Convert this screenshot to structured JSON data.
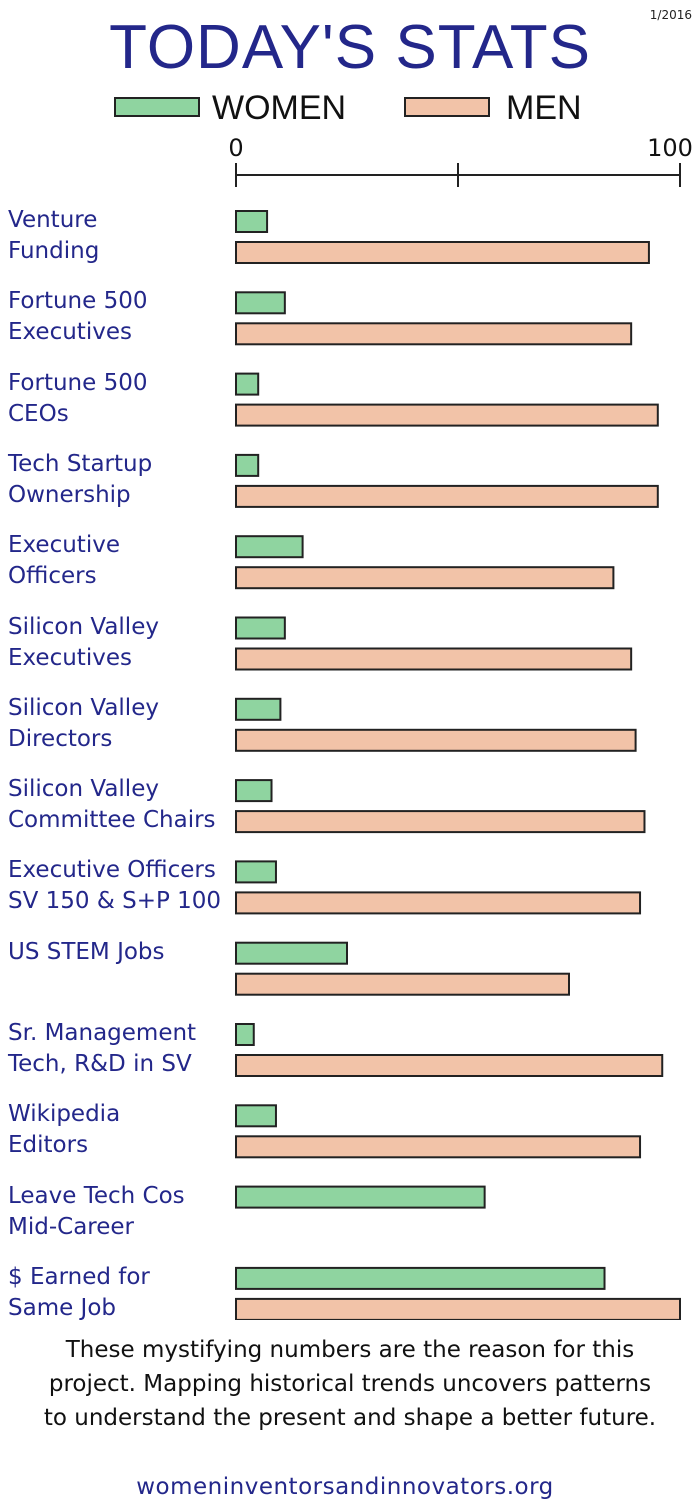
{
  "date": "1/2016",
  "colors": {
    "women": "#8fd4a0",
    "men": "#f2c3a8",
    "outline": "#222222",
    "title": "#23278a"
  },
  "chart_data": {
    "type": "bar",
    "orientation": "horizontal",
    "title": "TODAY'S STATS",
    "xlim": [
      0,
      100
    ],
    "ticks": [
      "0",
      "100"
    ],
    "categories": [
      "Venture\nFunding",
      "Fortune 500\nExecutives",
      "Fortune 500\nCEOs",
      "Tech Startup\nOwnership",
      "Executive\nOfficers",
      "Silicon Valley\nExecutives",
      "Silicon Valley\nDirectors",
      "Silicon Valley\nCommittee Chairs",
      "Executive Officers\nSV 150 & S+P 100",
      "US STEM Jobs",
      "Sr. Management\nTech, R&D in SV",
      "Wikipedia\nEditors",
      "Leave Tech Cos\nMid-Career",
      "$ Earned for\nSame Job"
    ],
    "series": [
      {
        "name": "WOMEN",
        "values": [
          7,
          11,
          5,
          5,
          15,
          11,
          10,
          8,
          9,
          25,
          4,
          9,
          56,
          83
        ]
      },
      {
        "name": "MEN",
        "values": [
          93,
          89,
          95,
          95,
          85,
          89,
          90,
          92,
          91,
          75,
          96,
          91,
          null,
          100
        ]
      }
    ]
  },
  "footer": {
    "text": "These mystifying numbers are the reason for this project. Mapping historical trends uncovers patterns to understand the present and shape a better future.",
    "url": "womeninventorsandinnovators.org"
  }
}
